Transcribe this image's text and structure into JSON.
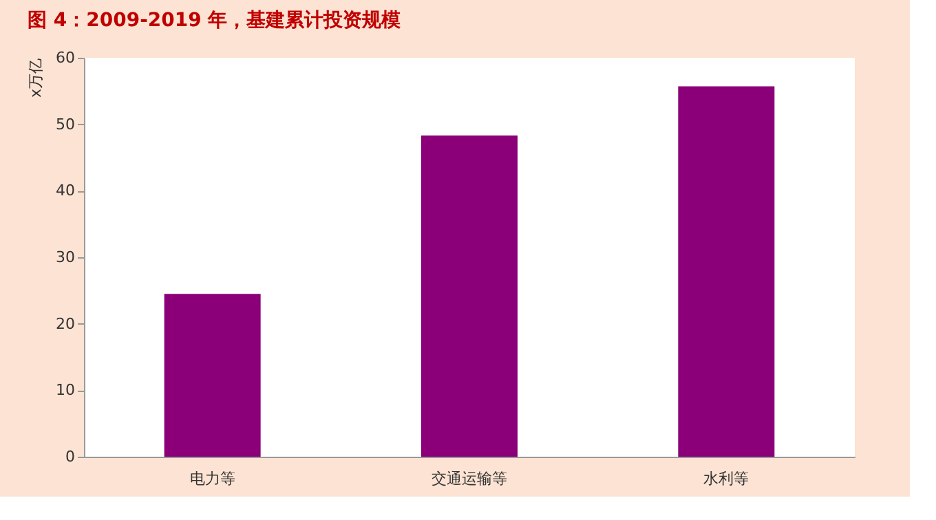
{
  "chart_data": {
    "type": "bar",
    "title": "图 4：2009-2019 年，基建累计投资规模",
    "ylabel": "x万亿",
    "categories": [
      "电力等",
      "交通运输等",
      "水利等"
    ],
    "values": [
      24.5,
      48.3,
      55.7
    ],
    "color": "#8b0079",
    "ylim": [
      0,
      60
    ],
    "yticks": [
      0,
      10,
      20,
      30,
      40,
      50,
      60
    ],
    "grid": false
  }
}
